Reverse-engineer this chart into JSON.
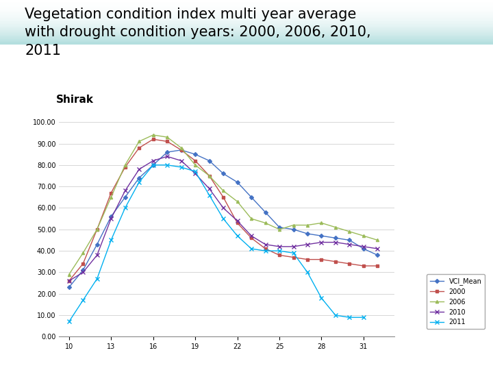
{
  "title_line1": "Vegetation condition index multi year average",
  "title_line2": "with drought condition years: 2000, 2006, 2010,",
  "title_line3": "2011",
  "subtitle_region": "Shirak",
  "x_ticks": [
    10,
    13,
    16,
    19,
    22,
    25,
    28,
    31
  ],
  "ylim": [
    0,
    100
  ],
  "ytick_labels": [
    "0.00",
    "10.00",
    "20.00",
    "30.00",
    "40.00",
    "50.00",
    "60.00",
    "70.00",
    "80.00",
    "90.00",
    "100.00"
  ],
  "series": {
    "VCI_Mean": {
      "color": "#4472C4",
      "marker": "D",
      "marker_size": 3,
      "x": [
        10,
        11,
        12,
        13,
        14,
        15,
        16,
        17,
        18,
        19,
        20,
        21,
        22,
        23,
        24,
        25,
        26,
        27,
        28,
        29,
        30,
        31,
        32
      ],
      "y": [
        23,
        31,
        43,
        56,
        65,
        74,
        80,
        86,
        87,
        85,
        82,
        76,
        72,
        65,
        58,
        51,
        50,
        48,
        47,
        46,
        45,
        41,
        38
      ]
    },
    "2000": {
      "color": "#C0504D",
      "marker": "s",
      "marker_size": 3,
      "x": [
        10,
        11,
        12,
        13,
        14,
        15,
        16,
        17,
        18,
        19,
        20,
        21,
        22,
        23,
        24,
        25,
        26,
        27,
        28,
        29,
        30,
        31,
        32
      ],
      "y": [
        26,
        34,
        50,
        67,
        79,
        88,
        92,
        91,
        87,
        82,
        75,
        65,
        53,
        46,
        41,
        38,
        37,
        36,
        36,
        35,
        34,
        33,
        33
      ]
    },
    "2006": {
      "color": "#9BBB59",
      "marker": "^",
      "marker_size": 3,
      "x": [
        10,
        11,
        12,
        13,
        14,
        15,
        16,
        17,
        18,
        19,
        20,
        21,
        22,
        23,
        24,
        25,
        26,
        27,
        28,
        29,
        30,
        31,
        32
      ],
      "y": [
        29,
        39,
        50,
        65,
        80,
        91,
        94,
        93,
        88,
        80,
        75,
        68,
        63,
        55,
        53,
        50,
        52,
        52,
        53,
        51,
        49,
        47,
        45
      ]
    },
    "2010": {
      "color": "#7030A0",
      "marker": "x",
      "marker_size": 4,
      "x": [
        10,
        11,
        12,
        13,
        14,
        15,
        16,
        17,
        18,
        19,
        20,
        21,
        22,
        23,
        24,
        25,
        26,
        27,
        28,
        29,
        30,
        31,
        32
      ],
      "y": [
        26,
        30,
        38,
        55,
        68,
        78,
        82,
        84,
        82,
        76,
        69,
        60,
        54,
        47,
        43,
        42,
        42,
        43,
        44,
        44,
        43,
        42,
        41
      ]
    },
    "2011": {
      "color": "#00B0F0",
      "marker": "x",
      "marker_size": 4,
      "x": [
        10,
        11,
        12,
        13,
        14,
        15,
        16,
        17,
        18,
        19,
        20,
        21,
        22,
        23,
        24,
        25,
        26,
        27,
        28,
        29,
        30,
        31,
        32
      ],
      "y": [
        7,
        17,
        27,
        45,
        60,
        72,
        80,
        80,
        79,
        77,
        66,
        55,
        47,
        41,
        40,
        40,
        39,
        30,
        18,
        10,
        9,
        9,
        null
      ]
    }
  },
  "background_color": "#FFFFFF",
  "top_gradient_color": "#7EC8C8",
  "title_fontsize": 15,
  "region_fontsize": 11,
  "legend_fontsize": 7,
  "tick_fontsize": 7
}
